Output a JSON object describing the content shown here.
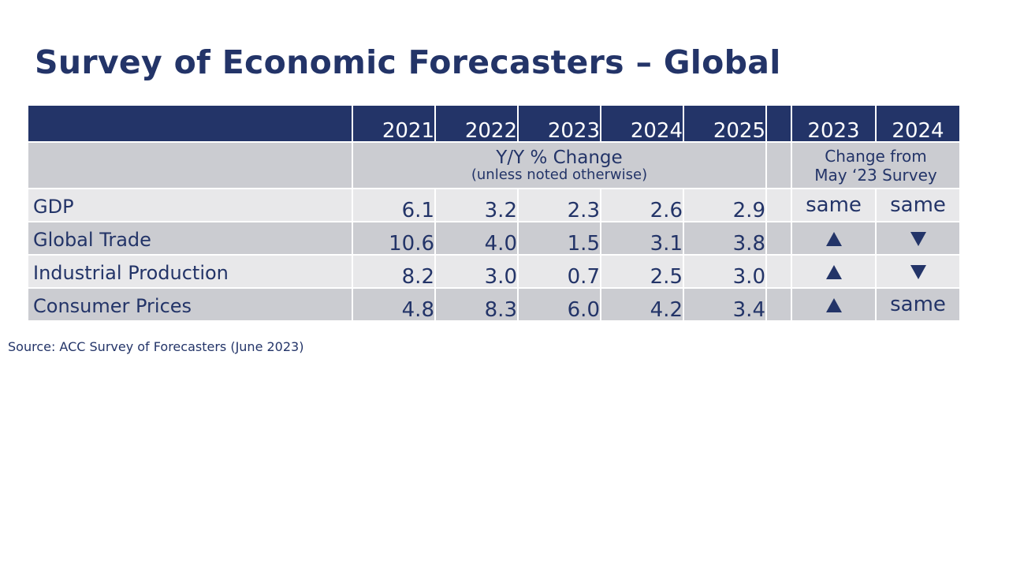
{
  "title": "Survey of Economic Forecasters – Global",
  "table": {
    "years": [
      "2021",
      "2022",
      "2023",
      "2024",
      "2025"
    ],
    "change_years": [
      "2023",
      "2024"
    ],
    "yy_label": "Y/Y % Change",
    "yy_note": "(unless noted otherwise)",
    "change_label_line1": "Change from",
    "change_label_line2": "May ‘23 Survey",
    "rows": [
      {
        "label": "GDP",
        "values": [
          "6.1",
          "3.2",
          "2.3",
          "2.6",
          "2.9"
        ],
        "changes": [
          {
            "type": "text",
            "text": "same"
          },
          {
            "type": "text",
            "text": "same"
          }
        ]
      },
      {
        "label": "Global Trade",
        "values": [
          "10.6",
          "4.0",
          "1.5",
          "3.1",
          "3.8"
        ],
        "changes": [
          {
            "type": "icon",
            "icon": "up-arrow-icon"
          },
          {
            "type": "icon",
            "icon": "down-arrow-icon"
          }
        ]
      },
      {
        "label": "Industrial Production",
        "values": [
          "8.2",
          "3.0",
          "0.7",
          "2.5",
          "3.0"
        ],
        "changes": [
          {
            "type": "icon",
            "icon": "up-arrow-icon"
          },
          {
            "type": "icon",
            "icon": "down-arrow-icon"
          }
        ]
      },
      {
        "label": "Consumer Prices",
        "values": [
          "4.8",
          "8.3",
          "6.0",
          "4.2",
          "3.4"
        ],
        "changes": [
          {
            "type": "icon",
            "icon": "up-arrow-icon"
          },
          {
            "type": "text",
            "text": "same"
          }
        ]
      }
    ]
  },
  "source": "Source:  ACC Survey  of Forecasters (June 2023)",
  "colors": {
    "header_bg": "#233468",
    "text": "#233468",
    "row_light": "#e8e8ea",
    "row_dark": "#cbccd1"
  }
}
